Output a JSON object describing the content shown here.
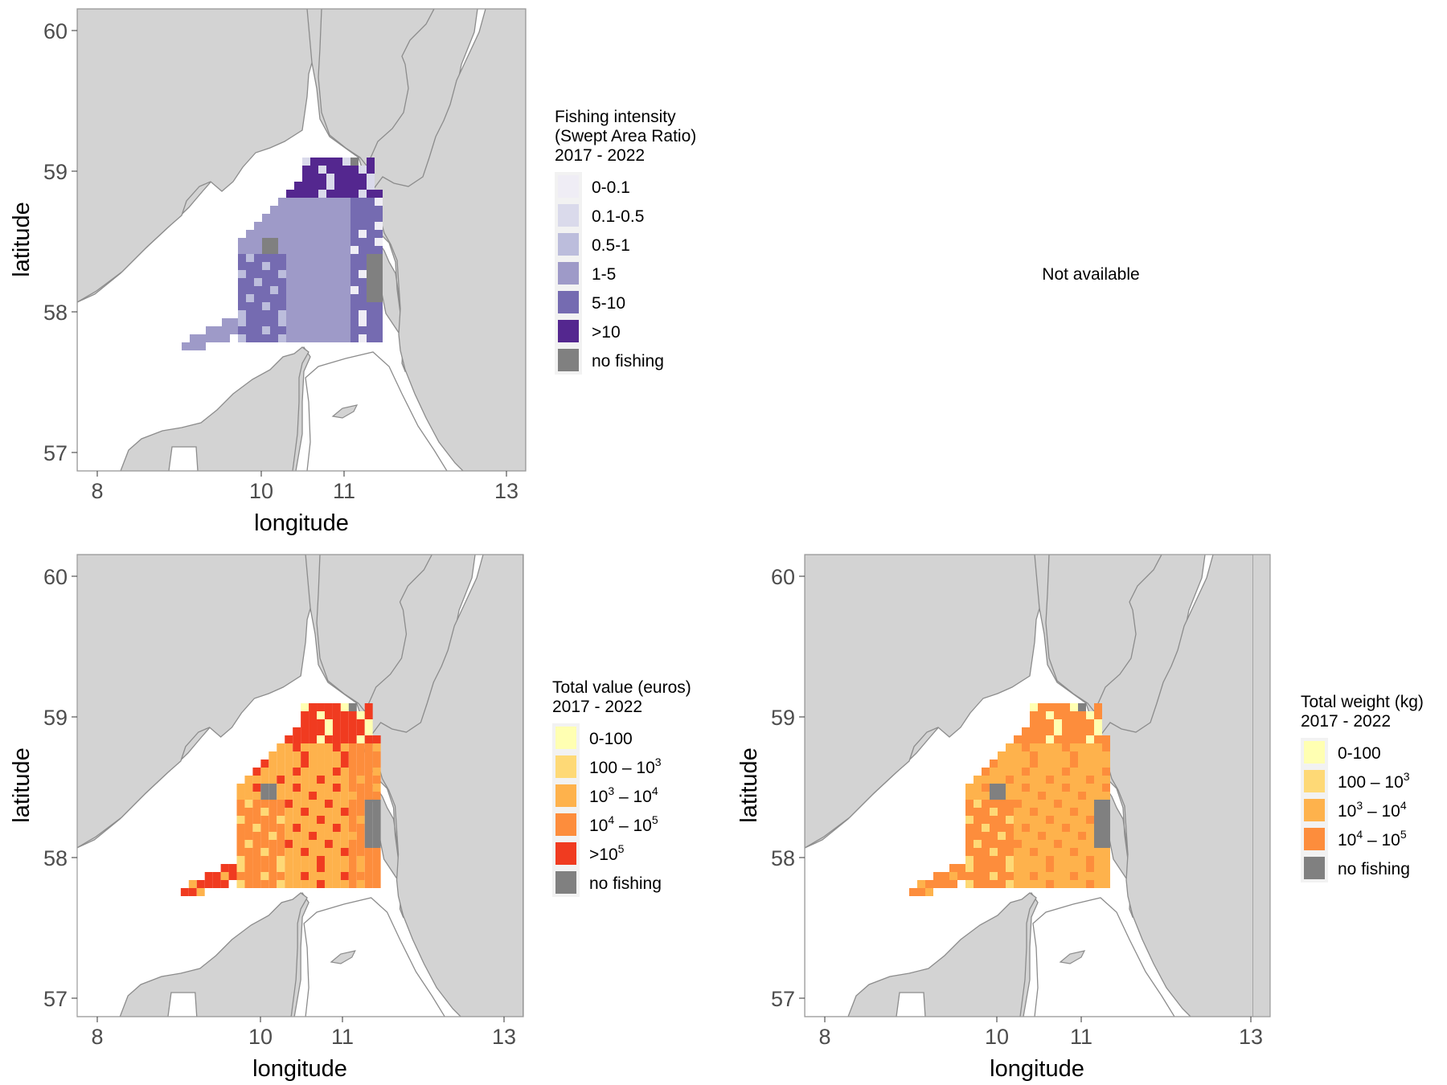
{
  "colors": {
    "land": "#d3d3d3",
    "sea": "#ffffff",
    "no_fishing": "#808080",
    "legend_bg": "#f2f2f2",
    "tick_text": "#4d4d4d"
  },
  "not_available_text": "Not available",
  "panels": [
    {
      "id": "intensity",
      "xlabel": "longitude",
      "ylabel": "latitude",
      "x_ticks": [
        "8",
        "10",
        "11",
        "13"
      ],
      "y_ticks": [
        "57",
        "58",
        "59",
        "60"
      ],
      "legend": {
        "title_lines": [
          "Fishing intensity",
          "(Swept Area Ratio)",
          " 2017 - 2022"
        ],
        "items": [
          {
            "label": "0-0.1",
            "color": "#efedf5"
          },
          {
            "label": "0.1-0.5",
            "color": "#dadaeb"
          },
          {
            "label": "0.5-1",
            "color": "#bcbddc"
          },
          {
            "label": "1-5",
            "color": "#9e9ac8"
          },
          {
            "label": "5-10",
            "color": "#756bb1"
          },
          {
            "label": ">10",
            "color": "#54278f"
          },
          {
            "label": "no fishing",
            "color": "#808080"
          }
        ]
      },
      "grid_legend_indices": [
        3,
        4,
        5,
        4,
        3,
        2,
        1,
        0
      ]
    },
    {
      "id": "value",
      "xlabel": "longitude",
      "ylabel": "latitude",
      "x_ticks": [
        "8",
        "10",
        "11",
        "13"
      ],
      "y_ticks": [
        "57",
        "58",
        "59",
        "60"
      ],
      "legend": {
        "title_lines": [
          "Total value (euros)",
          " 2017 - 2022"
        ],
        "items": [
          {
            "label": "0-100",
            "color": "#ffffb2"
          },
          {
            "label": "100 – 10",
            "sup": "3",
            "color": "#fed976"
          },
          {
            "label": "10",
            "sup": "3",
            "label2": " – 10",
            "sup2": "4",
            "color": "#feb24c"
          },
          {
            "label": "10",
            "sup": "4",
            "label2": " – 10",
            "sup2": "5",
            "color": "#fd8d3c"
          },
          {
            "label": ">10",
            "sup": "5",
            "color": "#f03b20"
          },
          {
            "label": "no fishing",
            "color": "#808080"
          }
        ]
      },
      "grid_legend_indices": [
        4,
        3,
        4,
        3,
        2,
        1,
        0,
        2
      ]
    },
    {
      "id": "weight",
      "xlabel": "longitude",
      "ylabel": "latitude",
      "x_ticks": [
        "8",
        "10",
        "11",
        "13"
      ],
      "y_ticks": [
        "57",
        "58",
        "59",
        "60"
      ],
      "legend": {
        "title_lines": [
          "Total weight (kg)",
          " 2017 - 2022"
        ],
        "items": [
          {
            "label": "0-100",
            "color": "#ffffb2"
          },
          {
            "label": "100 – 10",
            "sup": "3",
            "color": "#fed976"
          },
          {
            "label": "10",
            "sup": "3",
            "label2": " – 10",
            "sup2": "4",
            "color": "#feb24c"
          },
          {
            "label": "10",
            "sup": "4",
            "label2": " – 10",
            "sup2": "5",
            "color": "#fd8d3c"
          },
          {
            "label": "no fishing",
            "color": "#808080"
          }
        ]
      },
      "grid_legend_indices": [
        3,
        3,
        3,
        2,
        2,
        1,
        0,
        3
      ]
    }
  ]
}
